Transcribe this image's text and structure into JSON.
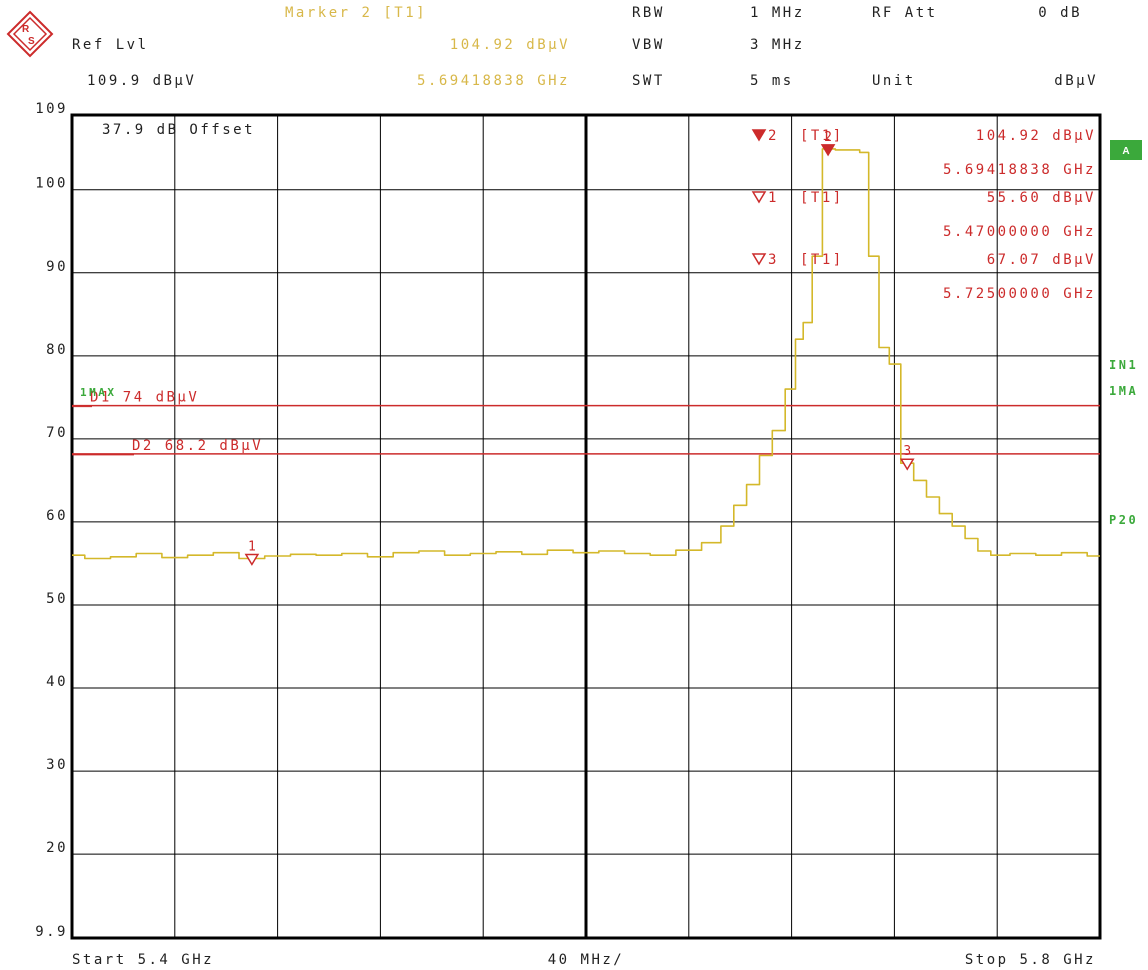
{
  "colors": {
    "trace": "#d4b82a",
    "marker": "#cc2b2b",
    "grid": "#000000",
    "side": "#3ba93b",
    "header_yellow": "#d8b84a",
    "text": "#222222"
  },
  "header": {
    "marker_title": "Marker 2 [T1]",
    "ref_lvl_label": "Ref Lvl",
    "ref_lvl_value": "109.9 dBµV",
    "marker_level": "104.92 dBµV",
    "marker_freq": "5.69418838 GHz",
    "rbw_label": "RBW",
    "rbw_value": "1 MHz",
    "vbw_label": "VBW",
    "vbw_value": "3 MHz",
    "swt_label": "SWT",
    "swt_value": "5 ms",
    "rfatt_label": "RF Att",
    "rfatt_value": "0 dB",
    "unit_label": "Unit",
    "unit_value": "dBµV"
  },
  "side_labels": {
    "a_badge": "A",
    "in1": "IN1",
    "ma1": "1MA",
    "p20": "P20"
  },
  "offset_text": "37.9 dB Offset",
  "trace_label": "1MAX",
  "lines": [
    {
      "label": "D1 74 dBµV",
      "y": 74
    },
    {
      "label": "D2 68.2 dBµV",
      "y": 68.2
    }
  ],
  "marker_table": [
    {
      "sym": "2",
      "type": "[T1]",
      "level": "104.92 dBµV",
      "freq": "5.69418838 GHz",
      "filled": true
    },
    {
      "sym": "1",
      "type": "[T1]",
      "level": "55.60 dBµV",
      "freq": "5.47000000 GHz",
      "filled": false
    },
    {
      "sym": "3",
      "type": "[T1]",
      "level": "67.07 dBµV",
      "freq": "5.72500000 GHz",
      "filled": false
    }
  ],
  "footer": {
    "start": "Start 5.4 GHz",
    "span": "40 MHz/",
    "stop": "Stop 5.8 GHz"
  },
  "chart_data": {
    "type": "line",
    "xlabel": "",
    "ylabel": "",
    "xlim": [
      5.4,
      5.8
    ],
    "ylim": [
      9.9,
      109
    ],
    "y_ticks": [
      {
        "v": 109,
        "label": "109"
      },
      {
        "v": 100,
        "label": "100"
      },
      {
        "v": 90,
        "label": "90"
      },
      {
        "v": 80,
        "label": "80"
      },
      {
        "v": 70,
        "label": "70"
      },
      {
        "v": 60,
        "label": "60"
      },
      {
        "v": 50,
        "label": "50"
      },
      {
        "v": 40,
        "label": "40"
      },
      {
        "v": 30,
        "label": "30"
      },
      {
        "v": 20,
        "label": "20"
      },
      {
        "v": 9.9,
        "label": "9.9"
      }
    ],
    "grid": true,
    "series": [
      {
        "x": [
          5.4,
          5.41,
          5.42,
          5.43,
          5.44,
          5.45,
          5.46,
          5.47,
          5.48,
          5.49,
          5.5,
          5.51,
          5.52,
          5.53,
          5.54,
          5.55,
          5.56,
          5.57,
          5.58,
          5.59,
          5.6,
          5.61,
          5.62,
          5.63,
          5.64,
          5.65,
          5.655,
          5.66,
          5.665,
          5.67,
          5.675,
          5.68,
          5.683,
          5.686,
          5.69,
          5.694,
          5.7,
          5.705,
          5.708,
          5.712,
          5.716,
          5.72,
          5.725,
          5.73,
          5.735,
          5.74,
          5.745,
          5.75,
          5.755,
          5.76,
          5.77,
          5.78,
          5.79,
          5.8
        ],
        "values": [
          56.0,
          55.6,
          55.8,
          56.2,
          55.7,
          56.0,
          56.3,
          55.6,
          55.9,
          56.1,
          56.0,
          56.2,
          55.8,
          56.3,
          56.5,
          56.0,
          56.2,
          56.4,
          56.1,
          56.6,
          56.3,
          56.5,
          56.2,
          56.0,
          56.6,
          57.5,
          59.5,
          62.0,
          64.5,
          68.0,
          71.0,
          76.0,
          82.0,
          84.0,
          92.0,
          104.92,
          104.8,
          104.8,
          104.5,
          92.0,
          81.0,
          79.0,
          67.07,
          65.0,
          63.0,
          61.0,
          59.5,
          58.0,
          56.5,
          56.0,
          56.2,
          56.0,
          56.3,
          55.9
        ]
      }
    ],
    "markers": [
      {
        "id": "1",
        "x": 5.47,
        "y": 55.6,
        "filled": false
      },
      {
        "id": "2",
        "x": 5.69418838,
        "y": 104.92,
        "filled": true
      },
      {
        "id": "3",
        "x": 5.725,
        "y": 67.07,
        "filled": false
      }
    ]
  }
}
